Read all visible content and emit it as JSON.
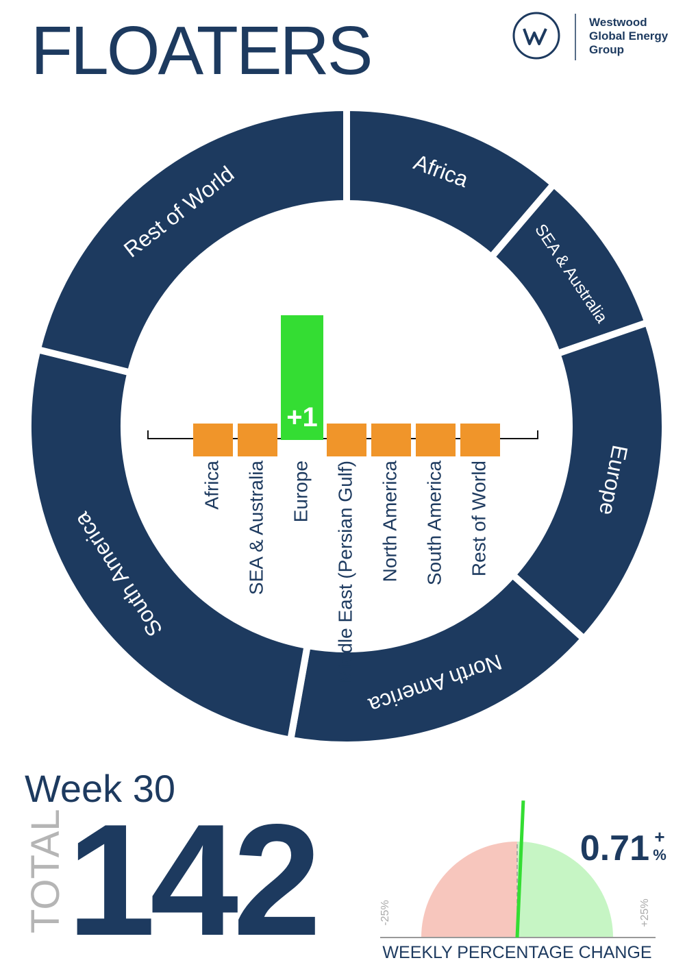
{
  "header": {
    "title": "FLOATERS",
    "logo_text": [
      "Westwood",
      "Global Energy",
      "Group"
    ]
  },
  "chart_data": [
    {
      "type": "pie",
      "categories": [
        "Africa",
        "SEA & Australia",
        "Europe",
        "North America",
        "South America",
        "Rest of World"
      ],
      "values": [
        16,
        12,
        24,
        23,
        37,
        30
      ],
      "color": "#1d3a5f"
    },
    {
      "type": "bar",
      "categories": [
        "Africa",
        "SEA & Australia",
        "Europe",
        "Middle East (Persian Gulf)",
        "North America",
        "South America",
        "Rest of World"
      ],
      "values": [
        0,
        0,
        1,
        0,
        0,
        0,
        0
      ],
      "value_labels": [
        null,
        null,
        "+1",
        null,
        null,
        null,
        null
      ],
      "ylim": [
        0,
        1
      ],
      "positive_color": "#34dd33",
      "zero_color": "#f0952a"
    },
    {
      "type": "gauge",
      "value": 0.71,
      "value_label": "0.71",
      "sign": "+",
      "unit": "%",
      "xlim": [
        -25,
        25
      ],
      "xticks": [
        {
          "value": -25,
          "label": "-25%"
        },
        {
          "value": 25,
          "label": "+25%"
        }
      ],
      "xlabel": "WEEKLY PERCENTAGE CHANGE",
      "negative_color": "#f7c6bd",
      "positive_color": "#c6f5c4",
      "needle_color": "#34dd33"
    }
  ],
  "summary": {
    "week": "Week 30",
    "total_label": "TOTAL",
    "total": 142
  }
}
